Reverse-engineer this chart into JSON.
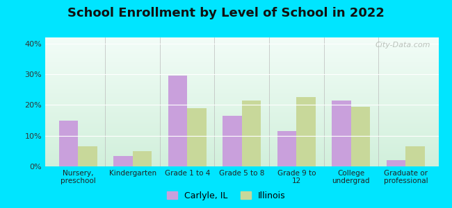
{
  "title": "School Enrollment by Level of School in 2022",
  "categories": [
    "Nursery,\npreschool",
    "Kindergarten",
    "Grade 1 to 4",
    "Grade 5 to 8",
    "Grade 9 to\n12",
    "College\nundergrad",
    "Graduate or\nprofessional"
  ],
  "carlyle_values": [
    15.0,
    3.5,
    29.5,
    16.5,
    11.5,
    21.5,
    2.0
  ],
  "illinois_values": [
    6.5,
    5.0,
    19.0,
    21.5,
    22.5,
    19.5,
    6.5
  ],
  "carlyle_color": "#c9a0dc",
  "illinois_color": "#c8d89a",
  "ylim": [
    0,
    42
  ],
  "yticks": [
    0,
    10,
    20,
    30,
    40
  ],
  "ytick_labels": [
    "0%",
    "10%",
    "20%",
    "30%",
    "40%"
  ],
  "background_outer": "#00e5ff",
  "legend_labels": [
    "Carlyle, IL",
    "Illinois"
  ],
  "watermark": "City-Data.com",
  "bar_width": 0.35,
  "title_fontsize": 13
}
